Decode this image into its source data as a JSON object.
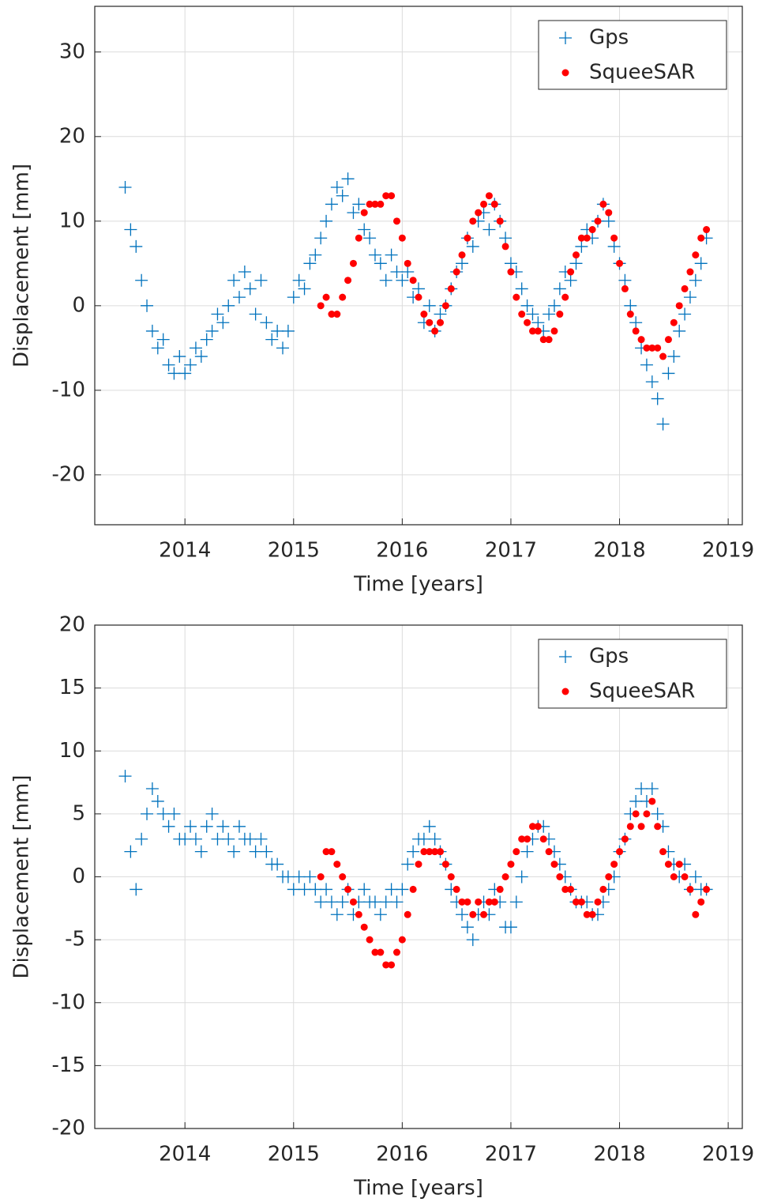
{
  "chart_data": [
    {
      "type": "scatter",
      "xlabel": "Time [years]",
      "ylabel": "Displacement [mm]",
      "xlim": [
        2013.17,
        2019.13
      ],
      "xticks": [
        2014,
        2015,
        2016,
        2017,
        2018,
        2019
      ],
      "ylim": [
        -25.9,
        35.4
      ],
      "yticks": [
        -20,
        -10,
        0,
        10,
        20,
        30
      ],
      "grid": true,
      "legend": "upper right",
      "series": [
        {
          "name": "Gps",
          "color": "#0072bd",
          "marker": "plus",
          "x": [
            2013.45,
            2013.5,
            2013.55,
            2013.6,
            2013.65,
            2013.7,
            2013.75,
            2013.8,
            2013.85,
            2013.9,
            2013.95,
            2014,
            2014.05,
            2014.1,
            2014.15,
            2014.2,
            2014.25,
            2014.3,
            2014.35,
            2014.4,
            2014.45,
            2014.5,
            2014.55,
            2014.6,
            2014.65,
            2014.7,
            2014.75,
            2014.8,
            2014.85,
            2014.9,
            2014.95,
            2015,
            2015.05,
            2015.1,
            2015.15,
            2015.2,
            2015.25,
            2015.3,
            2015.35,
            2015.4,
            2015.45,
            2015.5,
            2015.55,
            2015.6,
            2015.65,
            2015.7,
            2015.75,
            2015.8,
            2015.85,
            2015.9,
            2015.95,
            2016,
            2016.05,
            2016.1,
            2016.15,
            2016.2,
            2016.25,
            2016.3,
            2016.35,
            2016.4,
            2016.45,
            2016.5,
            2016.55,
            2016.6,
            2016.65,
            2016.7,
            2016.75,
            2016.8,
            2016.85,
            2016.9,
            2016.95,
            2017,
            2017.05,
            2017.1,
            2017.15,
            2017.2,
            2017.25,
            2017.3,
            2017.35,
            2017.4,
            2017.45,
            2017.5,
            2017.55,
            2017.6,
            2017.65,
            2017.7,
            2017.75,
            2017.8,
            2017.85,
            2017.9,
            2017.95,
            2018,
            2018.05,
            2018.1,
            2018.15,
            2018.2,
            2018.25,
            2018.3,
            2018.35,
            2018.4,
            2018.45,
            2018.5,
            2018.55,
            2018.6,
            2018.65,
            2018.7,
            2018.75,
            2018.8
          ],
          "values": [
            14,
            9,
            7,
            3,
            0,
            -3,
            -5,
            -4,
            -7,
            -8,
            -6,
            -8,
            -7,
            -5,
            -6,
            -4,
            -3,
            -1,
            -2,
            0,
            3,
            1,
            4,
            2,
            -1,
            3,
            -2,
            -4,
            -3,
            -5,
            -3,
            1,
            3,
            2,
            5,
            6,
            8,
            10,
            12,
            14,
            13,
            15,
            11,
            12,
            9,
            8,
            6,
            5,
            3,
            6,
            4,
            3,
            4,
            1,
            2,
            -2,
            0,
            -3,
            -1,
            0,
            2,
            4,
            5,
            8,
            7,
            10,
            11,
            9,
            12,
            10,
            8,
            5,
            4,
            2,
            0,
            -1,
            -2,
            -3,
            -1,
            0,
            2,
            4,
            3,
            5,
            7,
            9,
            8,
            10,
            12,
            10,
            7,
            5,
            3,
            0,
            -2,
            -5,
            -7,
            -9,
            -11,
            -14,
            -8,
            -6,
            -3,
            -1,
            1,
            3,
            5,
            8
          ]
        },
        {
          "name": "SqueeSAR",
          "color": "#ff0000",
          "marker": "dot",
          "x": [
            2015.25,
            2015.3,
            2015.35,
            2015.4,
            2015.45,
            2015.5,
            2015.55,
            2015.6,
            2015.65,
            2015.7,
            2015.75,
            2015.8,
            2015.85,
            2015.9,
            2015.95,
            2016,
            2016.05,
            2016.1,
            2016.15,
            2016.2,
            2016.25,
            2016.3,
            2016.35,
            2016.4,
            2016.45,
            2016.5,
            2016.55,
            2016.6,
            2016.65,
            2016.7,
            2016.75,
            2016.8,
            2016.85,
            2016.9,
            2016.95,
            2017,
            2017.05,
            2017.1,
            2017.15,
            2017.2,
            2017.25,
            2017.3,
            2017.35,
            2017.4,
            2017.45,
            2017.5,
            2017.55,
            2017.6,
            2017.65,
            2017.7,
            2017.75,
            2017.8,
            2017.85,
            2017.9,
            2017.95,
            2018,
            2018.05,
            2018.1,
            2018.15,
            2018.2,
            2018.25,
            2018.3,
            2018.35,
            2018.4,
            2018.45,
            2018.5,
            2018.55,
            2018.6,
            2018.65,
            2018.7,
            2018.75,
            2018.8
          ],
          "values": [
            0,
            1,
            -1,
            -1,
            1,
            3,
            5,
            8,
            11,
            12,
            12,
            12,
            13,
            13,
            10,
            8,
            5,
            3,
            1,
            -1,
            -2,
            -3,
            -2,
            0,
            2,
            4,
            6,
            8,
            10,
            11,
            12,
            13,
            12,
            10,
            7,
            4,
            1,
            -1,
            -2,
            -3,
            -3,
            -4,
            -4,
            -3,
            -1,
            1,
            4,
            6,
            8,
            8,
            9,
            10,
            12,
            11,
            8,
            5,
            2,
            -1,
            -3,
            -4,
            -5,
            -5,
            -5,
            -6,
            -4,
            -2,
            0,
            2,
            4,
            6,
            8,
            9
          ]
        }
      ]
    },
    {
      "type": "scatter",
      "xlabel": "Time [years]",
      "ylabel": "Displacement [mm]",
      "xlim": [
        2013.17,
        2019.13
      ],
      "xticks": [
        2014,
        2015,
        2016,
        2017,
        2018,
        2019
      ],
      "ylim": [
        -20,
        20
      ],
      "yticks": [
        -20,
        -15,
        -10,
        -5,
        0,
        5,
        10,
        15,
        20
      ],
      "grid": true,
      "legend": "upper right",
      "series": [
        {
          "name": "Gps",
          "color": "#0072bd",
          "marker": "plus",
          "x": [
            2013.45,
            2013.5,
            2013.55,
            2013.6,
            2013.65,
            2013.7,
            2013.75,
            2013.8,
            2013.85,
            2013.9,
            2013.95,
            2014,
            2014.05,
            2014.1,
            2014.15,
            2014.2,
            2014.25,
            2014.3,
            2014.35,
            2014.4,
            2014.45,
            2014.5,
            2014.55,
            2014.6,
            2014.65,
            2014.7,
            2014.75,
            2014.8,
            2014.85,
            2014.9,
            2014.95,
            2015,
            2015.05,
            2015.1,
            2015.15,
            2015.2,
            2015.25,
            2015.3,
            2015.35,
            2015.4,
            2015.45,
            2015.5,
            2015.55,
            2015.6,
            2015.65,
            2015.7,
            2015.75,
            2015.8,
            2015.85,
            2015.9,
            2015.95,
            2016,
            2016.05,
            2016.1,
            2016.15,
            2016.2,
            2016.25,
            2016.3,
            2016.35,
            2016.4,
            2016.45,
            2016.5,
            2016.55,
            2016.6,
            2016.65,
            2016.7,
            2016.75,
            2016.8,
            2016.85,
            2016.9,
            2016.95,
            2017,
            2017.05,
            2017.1,
            2017.15,
            2017.2,
            2017.25,
            2017.3,
            2017.35,
            2017.4,
            2017.45,
            2017.5,
            2017.55,
            2017.6,
            2017.65,
            2017.7,
            2017.75,
            2017.8,
            2017.85,
            2017.9,
            2017.95,
            2018,
            2018.05,
            2018.1,
            2018.15,
            2018.2,
            2018.25,
            2018.3,
            2018.35,
            2018.4,
            2018.45,
            2018.5,
            2018.55,
            2018.6,
            2018.65,
            2018.7,
            2018.75,
            2018.8
          ],
          "values": [
            8,
            2,
            -1,
            3,
            5,
            7,
            6,
            5,
            4,
            5,
            3,
            3,
            4,
            3,
            2,
            4,
            5,
            3,
            4,
            3,
            2,
            4,
            3,
            3,
            2,
            3,
            2,
            1,
            1,
            0,
            0,
            -1,
            0,
            -1,
            0,
            -1,
            -2,
            -1,
            -2,
            -3,
            -2,
            -1,
            -3,
            -2,
            -1,
            -2,
            -2,
            -3,
            -2,
            -1,
            -2,
            -1,
            1,
            2,
            3,
            3,
            4,
            3,
            2,
            1,
            -1,
            -2,
            -3,
            -4,
            -5,
            -3,
            -2,
            -3,
            -1,
            -2,
            -4,
            -4,
            -2,
            0,
            2,
            3,
            4,
            4,
            3,
            2,
            1,
            0,
            -1,
            -2,
            -2,
            -2,
            -3,
            -3,
            -2,
            -1,
            0,
            2,
            3,
            5,
            6,
            7,
            6,
            7,
            5,
            4,
            2,
            1,
            0,
            1,
            -1,
            0,
            -1,
            -1
          ]
        },
        {
          "name": "SqueeSAR",
          "color": "#ff0000",
          "marker": "dot",
          "x": [
            2015.25,
            2015.3,
            2015.35,
            2015.4,
            2015.45,
            2015.5,
            2015.55,
            2015.6,
            2015.65,
            2015.7,
            2015.75,
            2015.8,
            2015.85,
            2015.9,
            2015.95,
            2016,
            2016.05,
            2016.1,
            2016.15,
            2016.2,
            2016.25,
            2016.3,
            2016.35,
            2016.4,
            2016.45,
            2016.5,
            2016.55,
            2016.6,
            2016.65,
            2016.7,
            2016.75,
            2016.8,
            2016.85,
            2016.9,
            2016.95,
            2017,
            2017.05,
            2017.1,
            2017.15,
            2017.2,
            2017.25,
            2017.3,
            2017.35,
            2017.4,
            2017.45,
            2017.5,
            2017.55,
            2017.6,
            2017.65,
            2017.7,
            2017.75,
            2017.8,
            2017.85,
            2017.9,
            2017.95,
            2018,
            2018.05,
            2018.1,
            2018.15,
            2018.2,
            2018.25,
            2018.3,
            2018.35,
            2018.4,
            2018.45,
            2018.5,
            2018.55,
            2018.6,
            2018.65,
            2018.7,
            2018.75,
            2018.8
          ],
          "values": [
            0,
            2,
            2,
            1,
            0,
            -1,
            -2,
            -3,
            -4,
            -5,
            -6,
            -6,
            -7,
            -7,
            -6,
            -5,
            -3,
            -1,
            1,
            2,
            2,
            2,
            2,
            1,
            0,
            -1,
            -2,
            -2,
            -3,
            -2,
            -3,
            -2,
            -2,
            -1,
            0,
            1,
            2,
            3,
            3,
            4,
            4,
            3,
            2,
            1,
            0,
            -1,
            -1,
            -2,
            -2,
            -3,
            -3,
            -2,
            -1,
            0,
            1,
            2,
            3,
            4,
            5,
            4,
            5,
            6,
            4,
            2,
            1,
            0,
            1,
            0,
            -1,
            -3,
            -2,
            -1
          ]
        }
      ]
    }
  ]
}
